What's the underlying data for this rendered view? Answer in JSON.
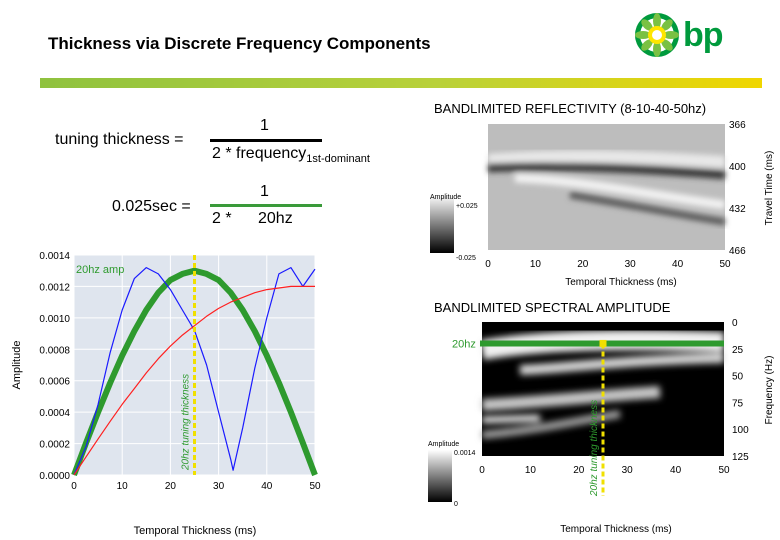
{
  "page_title": "Thickness via Discrete Frequency Components",
  "logo": {
    "text": "bp",
    "icon": "helios-sunflower-icon",
    "colors": {
      "green": "#009a3d",
      "yellow": "#ffe600"
    }
  },
  "equations": {
    "line1_lhs": "tuning thickness =",
    "line1_num": "1",
    "line1_den": "2 * frequency",
    "line1_den_sub": "1st-dominant",
    "line2_lhs": "0.025sec =",
    "line2_num": "1",
    "line2_den_a": "2 *",
    "line2_den_b": "20hz"
  },
  "chart_data": [
    {
      "type": "line",
      "ylabel": "Amplitude",
      "xlabel": "Temporal Thickness (ms)",
      "xlim": [
        0,
        50
      ],
      "ylim": [
        0,
        0.0014
      ],
      "x_ticks": [
        "0",
        "10",
        "20",
        "30",
        "40",
        "50"
      ],
      "y_ticks": [
        "0.0000",
        "0.0002",
        "0.0004",
        "0.0006",
        "0.0008",
        "0.0010",
        "0.0012",
        "0.0014"
      ],
      "annotation_amp": "20hz amp",
      "annotation_tuning": "20hz tuning thickness",
      "tuning_x": 25,
      "series": [
        {
          "color": "#2e9a2e",
          "x": [
            0,
            2.5,
            5,
            7.5,
            10,
            12.5,
            15,
            17.5,
            20,
            22.5,
            25,
            27.5,
            30,
            32.5,
            35,
            37.5,
            40,
            42.5,
            45,
            47.5,
            50
          ],
          "y": [
            0,
            0.000203,
            0.0004,
            0.000587,
            0.00076,
            0.000915,
            0.00105,
            0.00116,
            0.00124,
            0.00128,
            0.0013,
            0.00128,
            0.00124,
            0.00116,
            0.00105,
            0.000915,
            0.00076,
            0.000587,
            0.0004,
            0.000203,
            0
          ]
        },
        {
          "color": "#1a1aff",
          "x": [
            0,
            2.5,
            5,
            7.5,
            10,
            12.5,
            15,
            17.5,
            20,
            22.5,
            25,
            27.5,
            30,
            32.5,
            33,
            35,
            37.5,
            40,
            42.5,
            45,
            47.5,
            50
          ],
          "y": [
            0,
            0.00018,
            0.00045,
            0.00078,
            0.00105,
            0.00125,
            0.00132,
            0.00128,
            0.00118,
            0.00105,
            0.00092,
            0.0007,
            0.0004,
            0.0001,
            3e-05,
            0.0003,
            0.00068,
            0.001,
            0.00128,
            0.00132,
            0.0012,
            0.00131
          ]
        },
        {
          "color": "#ff2020",
          "x": [
            0,
            2.5,
            5,
            7.5,
            10,
            12.5,
            15,
            17.5,
            20,
            22.5,
            25,
            27.5,
            30,
            32.5,
            35,
            37.5,
            40,
            42.5,
            45,
            47.5,
            50
          ],
          "y": [
            0,
            0.000115,
            0.00023,
            0.000342,
            0.00045,
            0.00055,
            0.00065,
            0.00074,
            0.00082,
            0.00089,
            0.00095,
            0.00101,
            0.00106,
            0.0011,
            0.00113,
            0.00116,
            0.00118,
            0.00119,
            0.0012,
            0.0012,
            0.0012
          ]
        }
      ]
    },
    {
      "type": "heatmap",
      "title": "BANDLIMITED REFLECTIVITY (8-10-40-50hz)",
      "xlabel": "Temporal Thickness (ms)",
      "ylabel": "Travel Time (ms)",
      "xlim": [
        0,
        50
      ],
      "ylim": [
        366,
        466
      ],
      "x_ticks": [
        "0",
        "10",
        "20",
        "30",
        "40",
        "50"
      ],
      "y_ticks": [
        "366",
        "400",
        "432",
        "466"
      ],
      "colorbar": {
        "label": "Amplitude",
        "max": "+0.025",
        "min": "-0.025"
      }
    },
    {
      "type": "heatmap",
      "title": "BANDLIMITED SPECTRAL AMPLITUDE",
      "xlabel": "Temporal Thickness (ms)",
      "ylabel": "Frequency (Hz)",
      "xlim": [
        0,
        50
      ],
      "ylim": [
        0,
        125
      ],
      "x_ticks": [
        "0",
        "10",
        "20",
        "30",
        "40",
        "50"
      ],
      "y_ticks": [
        "0",
        "25",
        "50",
        "75",
        "100",
        "125"
      ],
      "colorbar": {
        "label": "Amplitude",
        "max": "0.0014",
        "min": "0"
      },
      "annotation_freq": "20hz",
      "annotation_tuning": "20hz tuning thickness",
      "marker": {
        "x": 25,
        "freq": 20
      }
    }
  ]
}
